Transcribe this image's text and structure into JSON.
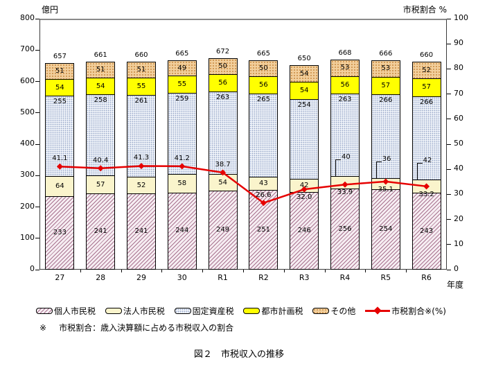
{
  "header": {
    "left_axis_unit": "億円",
    "right_axis_title": "市税割合 %",
    "x_axis_unit": "年度"
  },
  "chart_data": {
    "type": "stacked-bar-with-line",
    "categories": [
      "27",
      "28",
      "29",
      "30",
      "R1",
      "R2",
      "R3",
      "R4",
      "R5",
      "R6"
    ],
    "series": [
      {
        "name": "個人市民税",
        "pattern": "hatch-pink",
        "color": "#a8738f",
        "values": [
          233,
          241,
          241,
          244,
          249,
          251,
          246,
          256,
          254,
          243
        ]
      },
      {
        "name": "法人市民税",
        "pattern": "solid-cream",
        "color": "#faf4cc",
        "values": [
          64,
          57,
          52,
          58,
          54,
          43,
          42,
          40,
          36,
          42
        ]
      },
      {
        "name": "固定資産税",
        "pattern": "dots-blue",
        "color": "#94a3c6",
        "values": [
          255,
          258,
          261,
          259,
          263,
          265,
          254,
          263,
          266,
          266
        ]
      },
      {
        "name": "都市計画税",
        "pattern": "solid-yellow",
        "color": "#ffff00",
        "values": [
          54,
          54,
          55,
          55,
          56,
          56,
          54,
          56,
          57,
          57
        ]
      },
      {
        "name": "その他",
        "pattern": "dots-tan",
        "color": "#c8893f",
        "values": [
          51,
          51,
          51,
          49,
          50,
          50,
          54,
          53,
          53,
          52
        ]
      }
    ],
    "totals": [
      657,
      661,
      660,
      665,
      672,
      665,
      650,
      668,
      666,
      660
    ],
    "line": {
      "name": "市税割合※(%)",
      "color": "#e60000",
      "values": [
        41.1,
        40.4,
        41.3,
        41.2,
        38.7,
        26.6,
        32.0,
        33.9,
        35.1,
        33.2
      ],
      "labels": [
        "41.1",
        "40.4",
        "41.3",
        "41.2",
        "38.7",
        "26.6",
        "32.0",
        "33.9",
        "35.1",
        "33.2"
      ]
    },
    "left_axis": {
      "min": 0,
      "max": 800,
      "step": 100
    },
    "right_axis": {
      "min": 0,
      "max": 100,
      "step": 10
    },
    "line_label_side": [
      "above",
      "above",
      "above",
      "above",
      "above",
      "above",
      "below",
      "below",
      "below",
      "below"
    ],
    "callout_indices": [
      7,
      8,
      9
    ],
    "grid": false,
    "legend_position": "bottom"
  },
  "legend": {
    "items": [
      {
        "label": "個人市民税"
      },
      {
        "label": "法人市民税"
      },
      {
        "label": "固定資産税"
      },
      {
        "label": "都市計画税"
      },
      {
        "label": "その他"
      },
      {
        "label": "市税割合※(%)"
      }
    ]
  },
  "footnote": {
    "marker": "※",
    "text": "市税割合：歳入決算額に占める市税収入の割合"
  },
  "caption": "図２　市税収入の推移"
}
